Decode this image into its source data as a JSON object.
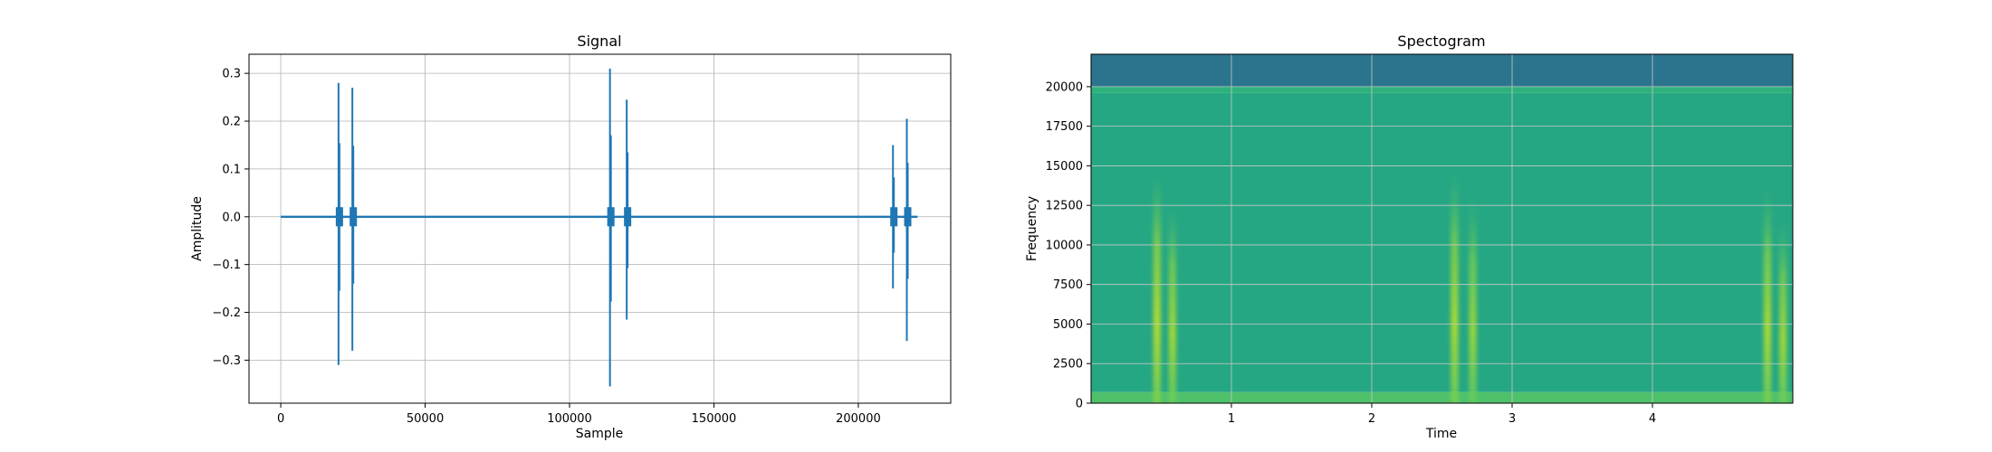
{
  "chart_data": [
    {
      "type": "line",
      "title": "Signal",
      "xlabel": "Sample",
      "ylabel": "Amplitude",
      "xlim": [
        -11000,
        232000
      ],
      "ylim": [
        -0.39,
        0.34
      ],
      "grid": true,
      "color": "#1f77b4",
      "xticks": [
        0,
        50000,
        100000,
        150000,
        200000
      ],
      "xtick_labels": [
        "0",
        "50000",
        "100000",
        "150000",
        "200000"
      ],
      "yticks": [
        -0.3,
        -0.2,
        -0.1,
        0.0,
        0.1,
        0.2,
        0.3
      ],
      "ytick_labels": [
        "−0.3",
        "−0.2",
        "−0.1",
        "0.0",
        "0.1",
        "0.2",
        "0.3"
      ],
      "x_range": [
        0,
        220500
      ],
      "spikes": [
        {
          "x": 20000,
          "max": 0.28,
          "min": -0.31
        },
        {
          "x": 24800,
          "max": 0.27,
          "min": -0.28
        },
        {
          "x": 114000,
          "max": 0.31,
          "min": -0.355
        },
        {
          "x": 119800,
          "max": 0.245,
          "min": -0.215
        },
        {
          "x": 212000,
          "max": 0.15,
          "min": -0.15
        },
        {
          "x": 216800,
          "max": 0.205,
          "min": -0.26
        }
      ]
    },
    {
      "type": "heatmap",
      "title": "Spectogram",
      "xlabel": "Time",
      "ylabel": "Frequency",
      "xlim": [
        0.0,
        5.0
      ],
      "ylim": [
        0,
        22050
      ],
      "grid": true,
      "xticks": [
        1,
        2,
        3,
        4
      ],
      "xtick_labels": [
        "1",
        "2",
        "3",
        "4"
      ],
      "yticks": [
        0,
        2500,
        5000,
        7500,
        10000,
        12500,
        15000,
        17500,
        20000
      ],
      "ytick_labels": [
        "0",
        "2500",
        "5000",
        "7500",
        "10000",
        "12500",
        "15000",
        "17500",
        "20000"
      ],
      "colormap": [
        "#3b528b",
        "#2c728e",
        "#21918c",
        "#28ae80",
        "#5ec962",
        "#addc30",
        "#fde725"
      ],
      "bands": [
        {
          "f_from": 0,
          "f_to": 700,
          "level": 0.62
        },
        {
          "f_from": 700,
          "f_to": 19600,
          "level": 0.46
        },
        {
          "f_from": 19600,
          "f_to": 20000,
          "level": 0.52
        },
        {
          "f_from": 20000,
          "f_to": 22050,
          "level": 0.18
        }
      ],
      "events": [
        {
          "t": 0.47,
          "f_max": 14500,
          "level": 0.78
        },
        {
          "t": 0.58,
          "f_max": 12500,
          "level": 0.74
        },
        {
          "t": 2.59,
          "f_max": 14500,
          "level": 0.76
        },
        {
          "t": 2.72,
          "f_max": 13000,
          "level": 0.72
        },
        {
          "t": 4.82,
          "f_max": 13500,
          "level": 0.76
        },
        {
          "t": 4.93,
          "f_max": 11500,
          "level": 0.74
        }
      ]
    }
  ]
}
